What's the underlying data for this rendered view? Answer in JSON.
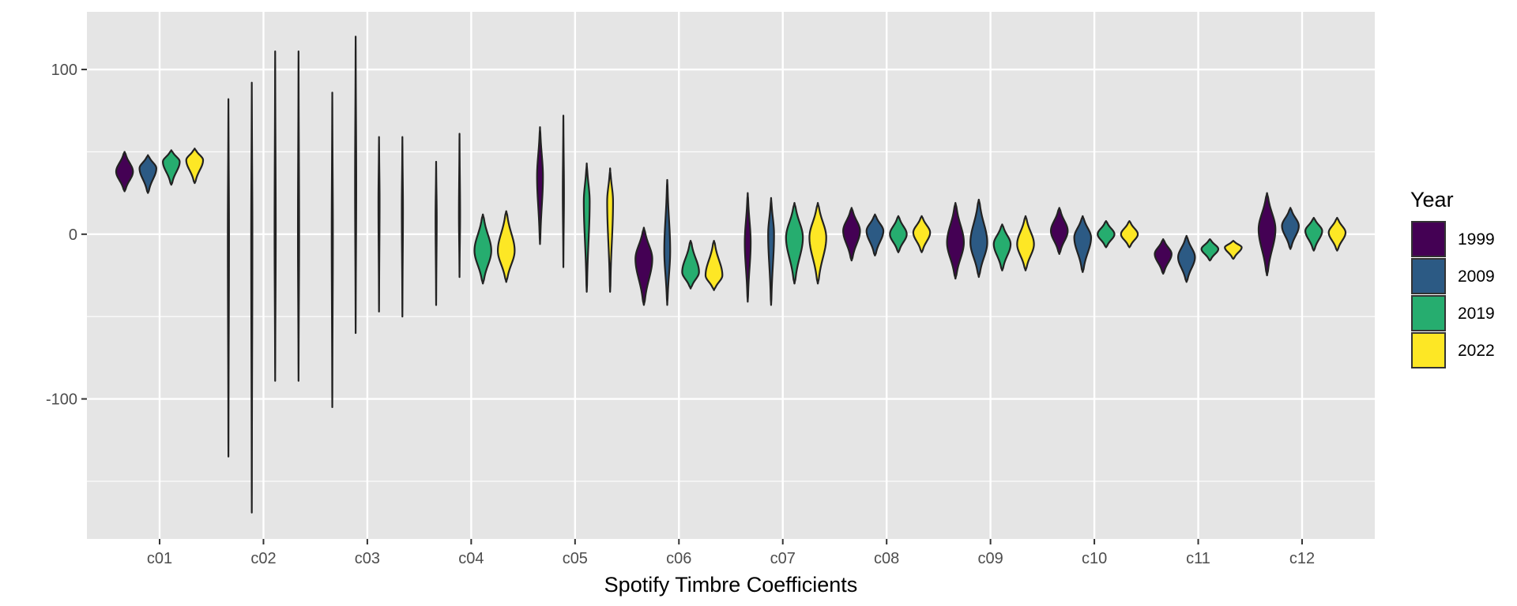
{
  "chart_data": {
    "type": "violin",
    "title": "",
    "xlabel": "Spotify Timbre Coefficients",
    "ylabel": "",
    "ylim": [
      -185,
      135
    ],
    "yticks": [
      -100,
      0,
      100
    ],
    "ytick_labels": [
      "-100",
      "0",
      "100"
    ],
    "grid": true,
    "legend_position": "right",
    "legend_title": "Year",
    "categories": [
      "c01",
      "c02",
      "c03",
      "c04",
      "c05",
      "c06",
      "c07",
      "c08",
      "c09",
      "c10",
      "c11",
      "c12"
    ],
    "series": [
      {
        "name": "1999",
        "color": "#440154",
        "ranges": [
          [
            26,
            50
          ],
          [
            -135,
            82
          ],
          [
            -105,
            86
          ],
          [
            -43,
            44
          ],
          [
            -6,
            65
          ],
          [
            -43,
            4
          ],
          [
            -41,
            25
          ],
          [
            -16,
            16
          ],
          [
            -27,
            19
          ],
          [
            -12,
            16
          ],
          [
            -24,
            -3
          ],
          [
            -25,
            25
          ]
        ],
        "centers": [
          38,
          0,
          0,
          10,
          35,
          -15,
          -5,
          2,
          -5,
          2,
          -12,
          3
        ]
      },
      {
        "name": "2009",
        "color": "#2c5a84",
        "ranges": [
          [
            25,
            48
          ],
          [
            -169,
            92
          ],
          [
            -60,
            120
          ],
          [
            -26,
            61
          ],
          [
            -20,
            72
          ],
          [
            -43,
            33
          ],
          [
            -43,
            22
          ],
          [
            -13,
            12
          ],
          [
            -26,
            21
          ],
          [
            -23,
            11
          ],
          [
            -29,
            -1
          ],
          [
            -9,
            16
          ]
        ],
        "centers": [
          40,
          0,
          30,
          12,
          25,
          -10,
          0,
          2,
          -5,
          -2,
          -14,
          5
        ]
      },
      {
        "name": "2019",
        "color": "#26ad6f",
        "ranges": [
          [
            30,
            51
          ],
          [
            -89,
            111
          ],
          [
            -47,
            59
          ],
          [
            -30,
            12
          ],
          [
            -35,
            43
          ],
          [
            -33,
            -4
          ],
          [
            -30,
            19
          ],
          [
            -11,
            11
          ],
          [
            -22,
            6
          ],
          [
            -8,
            8
          ],
          [
            -16,
            -3
          ],
          [
            -10,
            10
          ]
        ],
        "centers": [
          44,
          0,
          20,
          -10,
          20,
          -23,
          -2,
          0,
          -6,
          0,
          -9,
          2
        ]
      },
      {
        "name": "2022",
        "color": "#fde725",
        "ranges": [
          [
            31,
            52
          ],
          [
            -89,
            111
          ],
          [
            -50,
            59
          ],
          [
            -29,
            14
          ],
          [
            -35,
            40
          ],
          [
            -34,
            -4
          ],
          [
            -30,
            19
          ],
          [
            -11,
            11
          ],
          [
            -22,
            11
          ],
          [
            -8,
            8
          ],
          [
            -15,
            -4
          ],
          [
            -10,
            10
          ]
        ],
        "centers": [
          45,
          0,
          15,
          -10,
          20,
          -25,
          -2,
          1,
          -6,
          0,
          -8,
          1
        ]
      }
    ]
  }
}
